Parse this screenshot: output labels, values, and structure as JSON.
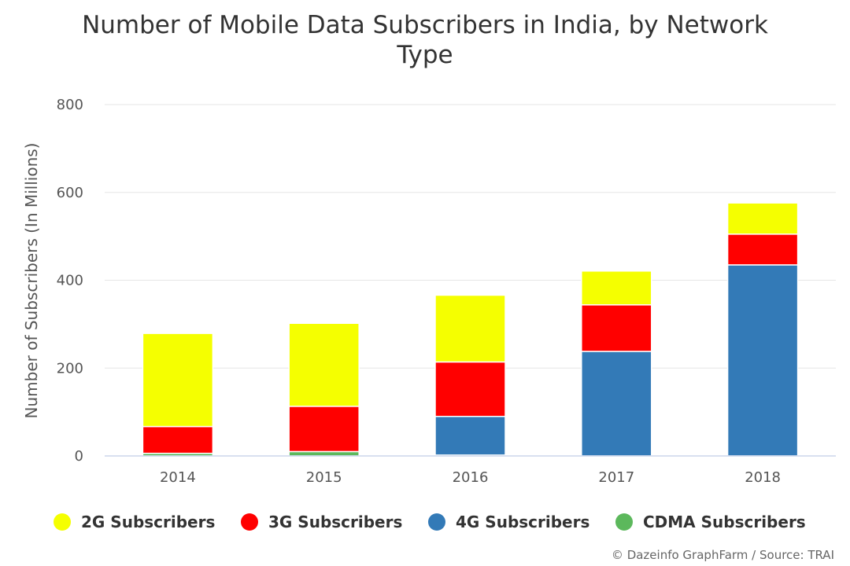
{
  "chart_data": {
    "type": "bar",
    "stacked": true,
    "title_line1": "Number of Mobile Data Subscribers in India, by Network",
    "title_line2": "Type",
    "ylabel": "Number of Subscribers (In Millions)",
    "xlabel": "",
    "categories": [
      "2014",
      "2015",
      "2016",
      "2017",
      "2018"
    ],
    "ylim": [
      0,
      800
    ],
    "yticks": [
      "0",
      "200",
      "400",
      "600",
      "800"
    ],
    "grid": true,
    "legend_position": "bottom",
    "series": [
      {
        "name": "2G Subscribers",
        "color": "#f5ff00",
        "values": [
          212,
          189,
          152,
          77,
          71
        ]
      },
      {
        "name": "3G Subscribers",
        "color": "#ff0000",
        "values": [
          61,
          103,
          124,
          106,
          70
        ]
      },
      {
        "name": "4G Subscribers",
        "color": "#337ab7",
        "values": [
          0,
          0,
          88,
          238,
          435
        ]
      },
      {
        "name": "CDMA Subscribers",
        "color": "#5cb85c",
        "values": [
          6,
          10,
          2,
          0,
          0
        ]
      }
    ],
    "credit": "© Dazeinfo GraphFarm / Source: TRAI"
  }
}
